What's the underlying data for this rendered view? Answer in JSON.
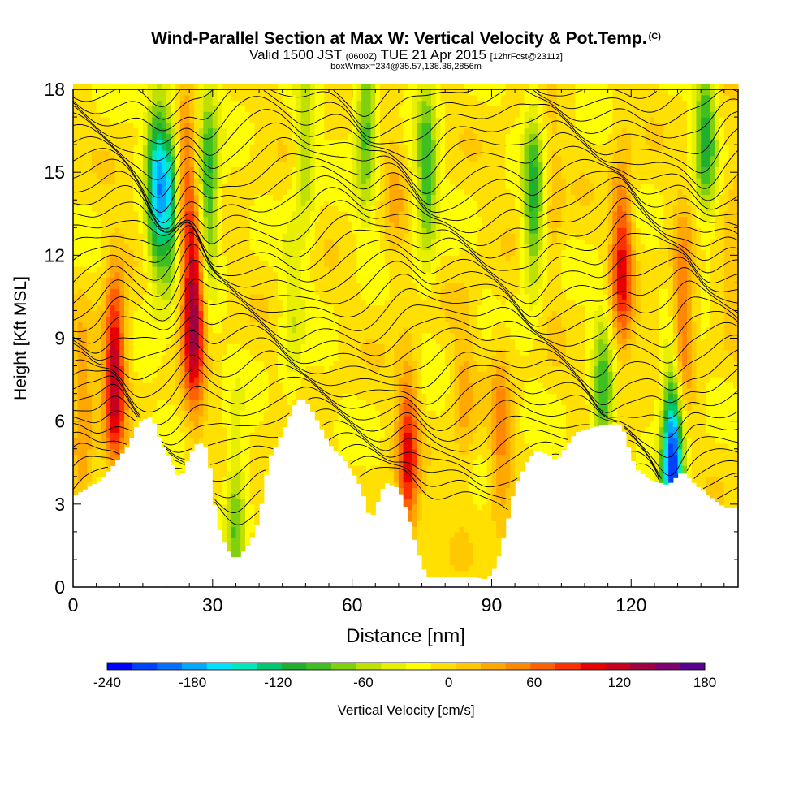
{
  "header": {
    "title": "Wind-Parallel Section at Max W: Vertical Velocity & Pot.Temp.",
    "copyright_mark": "(C)",
    "valid_prefix": "Valid 1500 JST",
    "valid_utc": "(0600Z)",
    "valid_date": "TUE 21 Apr 2015",
    "forecast_info": "[12hrFcst@2311z]",
    "box_info": "boxWmax=234@35.57,138.36,2856m"
  },
  "chart_data": {
    "type": "heatmap",
    "xlabel": "Distance [nm]",
    "ylabel": "Height [Kft MSL]",
    "xlim": [
      0,
      143
    ],
    "ylim": [
      0,
      18
    ],
    "x_ticks": [
      0,
      30,
      60,
      90,
      120
    ],
    "y_ticks": [
      0,
      3,
      6,
      9,
      12,
      15,
      18
    ],
    "colorbar": {
      "label": "Vertical Velocity [cm/s]",
      "range": [
        -240,
        180
      ],
      "step": 20,
      "tick_labels": [
        "-240",
        "-180",
        "-120",
        "-60",
        "0",
        "60",
        "120",
        "180"
      ],
      "colors": [
        "#0000ff",
        "#0040ff",
        "#0070ff",
        "#00a8ff",
        "#00e0ff",
        "#00e8c0",
        "#00c870",
        "#20b030",
        "#40c020",
        "#80d010",
        "#c0e000",
        "#e8f000",
        "#ffff00",
        "#ffe000",
        "#ffc800",
        "#ffa800",
        "#ff8800",
        "#ff6000",
        "#ff3000",
        "#e80000",
        "#c80020",
        "#a00040",
        "#800070",
        "#5a0090"
      ]
    },
    "terrain_height_kft": [
      [
        0,
        3.3
      ],
      [
        3,
        3.6
      ],
      [
        6,
        3.9
      ],
      [
        9,
        4.5
      ],
      [
        12,
        5.2
      ],
      [
        14,
        6.0
      ],
      [
        17,
        6.2
      ],
      [
        19,
        5.2
      ],
      [
        21,
        4.6
      ],
      [
        23,
        3.9
      ],
      [
        25,
        4.8
      ],
      [
        27,
        5.3
      ],
      [
        29,
        5.0
      ],
      [
        31,
        2.3
      ],
      [
        33,
        1.4
      ],
      [
        35,
        1.0
      ],
      [
        38,
        1.6
      ],
      [
        40,
        2.5
      ],
      [
        42,
        4.6
      ],
      [
        45,
        5.6
      ],
      [
        48,
        6.8
      ],
      [
        50,
        6.8
      ],
      [
        53,
        5.9
      ],
      [
        55,
        5.2
      ],
      [
        58,
        4.7
      ],
      [
        60,
        4.2
      ],
      [
        62,
        3.6
      ],
      [
        64,
        2.4
      ],
      [
        67,
        3.8
      ],
      [
        70,
        3.6
      ],
      [
        72,
        2.7
      ],
      [
        74,
        1.4
      ],
      [
        76,
        0.4
      ],
      [
        80,
        0.4
      ],
      [
        85,
        0.4
      ],
      [
        89,
        0.3
      ],
      [
        91,
        0.8
      ],
      [
        93,
        2.1
      ],
      [
        95,
        3.7
      ],
      [
        98,
        4.7
      ],
      [
        100,
        5.0
      ],
      [
        104,
        4.6
      ],
      [
        108,
        5.6
      ],
      [
        112,
        5.8
      ],
      [
        115,
        5.9
      ],
      [
        118,
        5.9
      ],
      [
        121,
        4.3
      ],
      [
        124,
        3.9
      ],
      [
        128,
        3.7
      ],
      [
        131,
        4.2
      ],
      [
        134,
        3.7
      ],
      [
        137,
        3.3
      ],
      [
        140,
        2.9
      ],
      [
        143,
        2.9
      ]
    ],
    "updraft_cores": [
      {
        "x": 9,
        "y": 7.9,
        "w": 160
      },
      {
        "x": 26,
        "y": 10.0,
        "w": 180
      },
      {
        "x": 24,
        "y": 14.5,
        "w": 80
      },
      {
        "x": 72,
        "y": 4.6,
        "w": 120
      },
      {
        "x": 118,
        "y": 11.8,
        "w": 120
      },
      {
        "x": 131,
        "y": 9.5,
        "w": 100
      },
      {
        "x": 2,
        "y": 6.0,
        "w": 60
      },
      {
        "x": 92,
        "y": 5.5,
        "w": 60
      },
      {
        "x": 84,
        "y": 6.8,
        "w": 40
      },
      {
        "x": 69,
        "y": 14.0,
        "w": 30
      },
      {
        "x": 103,
        "y": 13.5,
        "w": 30
      },
      {
        "x": 142,
        "y": 12.5,
        "w": 30
      }
    ],
    "downdraft_cores": [
      {
        "x": 18,
        "y": 14.5,
        "w": -160
      },
      {
        "x": 21,
        "y": 14.0,
        "w": -120
      },
      {
        "x": 29,
        "y": 14.5,
        "w": -120
      },
      {
        "x": 63,
        "y": 17.0,
        "w": -100
      },
      {
        "x": 76,
        "y": 15.0,
        "w": -100
      },
      {
        "x": 99,
        "y": 14.0,
        "w": -110
      },
      {
        "x": 136,
        "y": 16.5,
        "w": -110
      },
      {
        "x": 129,
        "y": 4.7,
        "w": -240
      },
      {
        "x": 114,
        "y": 6.5,
        "w": -100
      },
      {
        "x": 35,
        "y": 2.5,
        "w": -80
      },
      {
        "x": 50,
        "y": 15.5,
        "w": -60
      },
      {
        "x": 47,
        "y": 9.5,
        "w": -40
      }
    ]
  }
}
